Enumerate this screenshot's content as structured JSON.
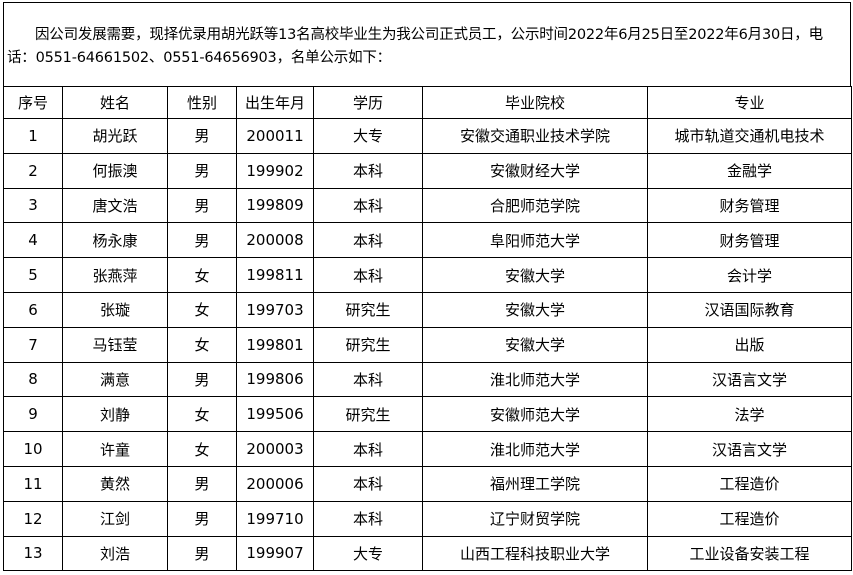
{
  "notice": "因公司发展需要，现择优录用胡光跃等13名高校毕业生为我公司正式员工，公示时间2022年6月25日至2022年6月30日，电话：0551-64661502、0551-64656903，名单公示如下：",
  "table": {
    "headers": [
      "序号",
      "姓名",
      "性别",
      "出生年月",
      "学历",
      "毕业院校",
      "专业"
    ],
    "rows": [
      [
        "1",
        "胡光跃",
        "男",
        "200011",
        "大专",
        "安徽交通职业技术学院",
        "城市轨道交通机电技术"
      ],
      [
        "2",
        "何振澳",
        "男",
        "199902",
        "本科",
        "安徽财经大学",
        "金融学"
      ],
      [
        "3",
        "唐文浩",
        "男",
        "199809",
        "本科",
        "合肥师范学院",
        "财务管理"
      ],
      [
        "4",
        "杨永康",
        "男",
        "200008",
        "本科",
        "阜阳师范大学",
        "财务管理"
      ],
      [
        "5",
        "张燕萍",
        "女",
        "199811",
        "本科",
        "安徽大学",
        "会计学"
      ],
      [
        "6",
        "张璇",
        "女",
        "199703",
        "研究生",
        "安徽大学",
        "汉语国际教育"
      ],
      [
        "7",
        "马钰莹",
        "女",
        "199801",
        "研究生",
        "安徽大学",
        "出版"
      ],
      [
        "8",
        "满意",
        "男",
        "199806",
        "本科",
        "淮北师范大学",
        "汉语言文学"
      ],
      [
        "9",
        "刘静",
        "女",
        "199506",
        "研究生",
        "安徽师范大学",
        "法学"
      ],
      [
        "10",
        "许童",
        "女",
        "200003",
        "本科",
        "淮北师范大学",
        "汉语言文学"
      ],
      [
        "11",
        "黄然",
        "男",
        "200006",
        "本科",
        "福州理工学院",
        "工程造价"
      ],
      [
        "12",
        "江剑",
        "男",
        "199710",
        "本科",
        "辽宁财贸学院",
        "工程造价"
      ],
      [
        "13",
        "刘浩",
        "男",
        "199907",
        "大专",
        "山西工程科技职业大学",
        "工业设备安装工程"
      ]
    ]
  }
}
